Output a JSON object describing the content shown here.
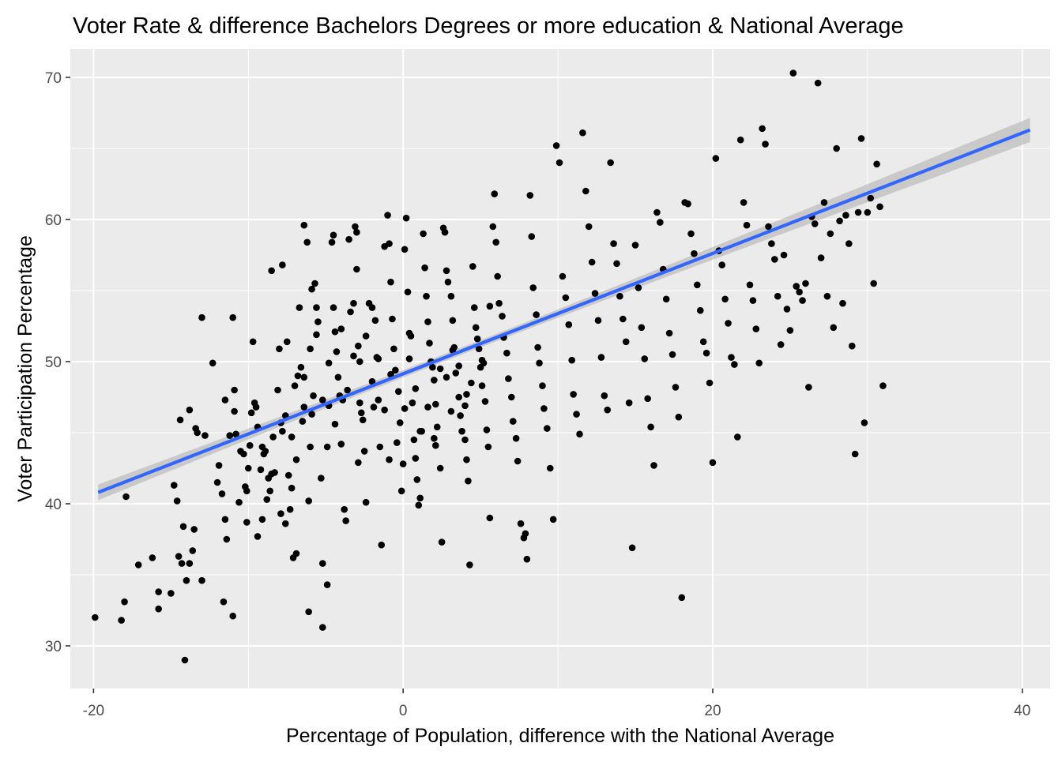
{
  "chart_data": {
    "type": "scatter",
    "title": "Voter Rate & difference Bachelors Degrees or more education & National Average",
    "xlabel": "Percentage of Population, difference with the National Average",
    "ylabel": "Voter Participation Percentage",
    "xlim": [
      -21.5,
      41.8
    ],
    "ylim": [
      27,
      72
    ],
    "x_ticks": [
      -20,
      0,
      20,
      40
    ],
    "x_tick_labels": [
      "-20",
      "0",
      "20",
      "40"
    ],
    "y_ticks": [
      30,
      40,
      50,
      60,
      70
    ],
    "y_tick_labels": [
      "30",
      "40",
      "50",
      "60",
      "70"
    ],
    "grid": true,
    "panel_color": "#ebebeb",
    "grid_color": "#ffffff",
    "point_color": "#000000",
    "trend_color": "#3366ff",
    "ribbon_color": "#b3b3b3",
    "trend": {
      "x": [
        -19.7,
        40.5
      ],
      "y": [
        40.8,
        66.3
      ],
      "ci_half_width_ends": 0.85,
      "ci_half_width_center": 0.25,
      "ci_center_x": 3.0
    },
    "points": [
      [
        -19.9,
        32.0
      ],
      [
        -18.2,
        31.8
      ],
      [
        -18.0,
        33.1
      ],
      [
        -17.9,
        40.5
      ],
      [
        -17.1,
        35.7
      ],
      [
        -16.2,
        36.2
      ],
      [
        -15.8,
        33.8
      ],
      [
        -15.8,
        32.6
      ],
      [
        -15.0,
        33.7
      ],
      [
        -14.8,
        41.3
      ],
      [
        -14.6,
        40.2
      ],
      [
        -14.5,
        36.3
      ],
      [
        -14.4,
        45.9
      ],
      [
        -14.3,
        35.8
      ],
      [
        -14.2,
        38.4
      ],
      [
        -14.0,
        34.6
      ],
      [
        -13.8,
        46.6
      ],
      [
        -13.8,
        35.8
      ],
      [
        -13.6,
        36.7
      ],
      [
        -13.5,
        38.2
      ],
      [
        -13.4,
        45.3
      ],
      [
        -14.1,
        29.0
      ],
      [
        -13.3,
        45.0
      ],
      [
        -13.0,
        34.6
      ],
      [
        -12.8,
        44.8
      ],
      [
        -12.3,
        49.9
      ],
      [
        -11.9,
        42.7
      ],
      [
        -11.7,
        40.7
      ],
      [
        -11.6,
        33.1
      ],
      [
        -11.5,
        38.9
      ],
      [
        -11.4,
        37.5
      ],
      [
        -11.2,
        44.8
      ],
      [
        -11.0,
        32.1
      ],
      [
        -11.0,
        53.1
      ],
      [
        -10.9,
        48.0
      ],
      [
        -10.9,
        46.5
      ],
      [
        -10.6,
        40.1
      ],
      [
        -10.5,
        43.7
      ],
      [
        -10.3,
        43.5
      ],
      [
        -10.1,
        40.9
      ],
      [
        -10.1,
        38.7
      ],
      [
        -10.0,
        42.5
      ],
      [
        -9.9,
        44.1
      ],
      [
        -9.8,
        46.4
      ],
      [
        -9.7,
        51.4
      ],
      [
        -9.5,
        46.8
      ],
      [
        -9.4,
        45.4
      ],
      [
        -9.2,
        42.4
      ],
      [
        -9.1,
        38.9
      ],
      [
        -9.0,
        43.5
      ],
      [
        -8.8,
        40.3
      ],
      [
        -8.7,
        41.8
      ],
      [
        -8.6,
        40.9
      ],
      [
        -8.5,
        56.4
      ],
      [
        -8.4,
        44.7
      ],
      [
        -8.3,
        42.2
      ],
      [
        -8.1,
        48.0
      ],
      [
        -7.9,
        39.3
      ],
      [
        -7.8,
        56.8
      ],
      [
        -7.8,
        45.1
      ],
      [
        -7.6,
        38.6
      ],
      [
        -7.5,
        51.4
      ],
      [
        -7.4,
        42.0
      ],
      [
        -7.3,
        39.6
      ],
      [
        -7.2,
        44.7
      ],
      [
        -7.1,
        36.2
      ],
      [
        -7.0,
        48.3
      ],
      [
        -6.9,
        36.5
      ],
      [
        -6.7,
        53.8
      ],
      [
        -6.6,
        49.6
      ],
      [
        -6.5,
        45.8
      ],
      [
        -6.4,
        59.6
      ],
      [
        -6.4,
        48.9
      ],
      [
        -6.2,
        58.4
      ],
      [
        -6.1,
        40.2
      ],
      [
        -6.1,
        32.4
      ],
      [
        -6.0,
        50.9
      ],
      [
        -5.9,
        55.1
      ],
      [
        -5.8,
        47.6
      ],
      [
        -5.7,
        55.5
      ],
      [
        -5.6,
        53.8
      ],
      [
        -5.5,
        52.8
      ],
      [
        -5.3,
        41.8
      ],
      [
        -5.2,
        35.8
      ],
      [
        -5.2,
        31.3
      ],
      [
        -4.9,
        34.3
      ],
      [
        -4.8,
        46.9
      ],
      [
        -4.6,
        58.4
      ],
      [
        -4.5,
        58.9
      ],
      [
        -4.5,
        53.8
      ],
      [
        -4.4,
        52.1
      ],
      [
        -4.3,
        50.7
      ],
      [
        -4.2,
        48.9
      ],
      [
        -4.1,
        47.6
      ],
      [
        -4.0,
        44.2
      ],
      [
        -3.8,
        39.6
      ],
      [
        -3.7,
        38.8
      ],
      [
        -3.5,
        58.6
      ],
      [
        -3.4,
        53.5
      ],
      [
        -3.2,
        54.1
      ],
      [
        -3.1,
        59.5
      ],
      [
        -3.0,
        59.1
      ],
      [
        -3.0,
        56.5
      ],
      [
        -2.9,
        51.1
      ],
      [
        -2.8,
        50.0
      ],
      [
        -2.7,
        46.4
      ],
      [
        -2.6,
        45.9
      ],
      [
        -2.5,
        43.7
      ],
      [
        -2.4,
        40.1
      ],
      [
        -2.2,
        54.1
      ],
      [
        -2.0,
        53.8
      ],
      [
        -1.8,
        52.9
      ],
      [
        -1.7,
        50.3
      ],
      [
        -1.6,
        47.3
      ],
      [
        -1.5,
        44.0
      ],
      [
        -1.4,
        37.1
      ],
      [
        -1.2,
        58.1
      ],
      [
        -1.0,
        60.3
      ],
      [
        -0.9,
        58.3
      ],
      [
        -0.8,
        55.6
      ],
      [
        -0.7,
        53.0
      ],
      [
        -0.6,
        50.9
      ],
      [
        -0.5,
        49.4
      ],
      [
        -0.3,
        47.9
      ],
      [
        -0.2,
        45.7
      ],
      [
        -0.1,
        40.9
      ],
      [
        0.0,
        42.8
      ],
      [
        0.1,
        57.9
      ],
      [
        0.2,
        60.1
      ],
      [
        0.3,
        54.9
      ],
      [
        0.4,
        52.0
      ],
      [
        0.5,
        51.8
      ],
      [
        0.6,
        47.1
      ],
      [
        0.7,
        44.5
      ],
      [
        0.8,
        43.2
      ],
      [
        0.9,
        41.7
      ],
      [
        1.0,
        39.9
      ],
      [
        1.1,
        40.4
      ],
      [
        1.3,
        59.0
      ],
      [
        1.4,
        56.6
      ],
      [
        1.5,
        54.6
      ],
      [
        1.6,
        52.8
      ],
      [
        1.7,
        51.3
      ],
      [
        1.8,
        50.0
      ],
      [
        1.9,
        49.6
      ],
      [
        2.0,
        48.7
      ],
      [
        2.1,
        47.0
      ],
      [
        2.2,
        45.4
      ],
      [
        2.4,
        42.5
      ],
      [
        2.5,
        37.3
      ],
      [
        2.6,
        59.4
      ],
      [
        2.7,
        59.1
      ],
      [
        2.8,
        56.4
      ],
      [
        2.9,
        55.6
      ],
      [
        3.1,
        54.6
      ],
      [
        3.2,
        52.9
      ],
      [
        3.3,
        51.0
      ],
      [
        3.4,
        49.2
      ],
      [
        3.6,
        47.5
      ],
      [
        3.7,
        46.2
      ],
      [
        3.8,
        45.1
      ],
      [
        4.0,
        44.5
      ],
      [
        4.1,
        43.1
      ],
      [
        4.2,
        41.6
      ],
      [
        4.3,
        35.7
      ],
      [
        4.5,
        56.7
      ],
      [
        4.6,
        53.8
      ],
      [
        4.7,
        52.4
      ],
      [
        4.9,
        50.9
      ],
      [
        5.0,
        49.6
      ],
      [
        5.1,
        48.3
      ],
      [
        5.3,
        47.2
      ],
      [
        5.4,
        45.2
      ],
      [
        5.5,
        44.0
      ],
      [
        5.6,
        39.0
      ],
      [
        5.8,
        59.5
      ],
      [
        5.9,
        61.8
      ],
      [
        6.0,
        58.4
      ],
      [
        6.1,
        56.0
      ],
      [
        6.2,
        54.1
      ],
      [
        6.4,
        53.2
      ],
      [
        6.5,
        51.7
      ],
      [
        6.7,
        50.6
      ],
      [
        6.8,
        48.8
      ],
      [
        7.0,
        47.5
      ],
      [
        7.1,
        45.8
      ],
      [
        7.3,
        44.6
      ],
      [
        7.4,
        43.0
      ],
      [
        7.6,
        38.6
      ],
      [
        7.8,
        37.6
      ],
      [
        7.9,
        37.9
      ],
      [
        8.0,
        36.1
      ],
      [
        8.2,
        61.7
      ],
      [
        8.3,
        58.8
      ],
      [
        8.4,
        55.2
      ],
      [
        8.6,
        53.3
      ],
      [
        8.7,
        51.0
      ],
      [
        8.8,
        49.9
      ],
      [
        9.0,
        48.3
      ],
      [
        9.1,
        46.7
      ],
      [
        9.3,
        45.3
      ],
      [
        9.5,
        42.5
      ],
      [
        9.7,
        38.9
      ],
      [
        9.9,
        65.2
      ],
      [
        10.1,
        64.0
      ],
      [
        10.3,
        56.0
      ],
      [
        10.5,
        54.5
      ],
      [
        10.7,
        52.6
      ],
      [
        10.9,
        50.1
      ],
      [
        11.0,
        47.7
      ],
      [
        11.2,
        46.3
      ],
      [
        11.4,
        44.9
      ],
      [
        11.6,
        66.1
      ],
      [
        11.8,
        62.0
      ],
      [
        12.0,
        59.5
      ],
      [
        12.2,
        57.0
      ],
      [
        12.4,
        54.8
      ],
      [
        12.6,
        52.9
      ],
      [
        12.8,
        50.3
      ],
      [
        13.0,
        47.6
      ],
      [
        13.2,
        46.6
      ],
      [
        13.4,
        64.0
      ],
      [
        13.6,
        58.3
      ],
      [
        13.8,
        56.9
      ],
      [
        14.0,
        54.6
      ],
      [
        14.2,
        53.0
      ],
      [
        14.4,
        51.4
      ],
      [
        14.6,
        47.1
      ],
      [
        14.8,
        36.9
      ],
      [
        15.0,
        58.2
      ],
      [
        15.2,
        55.2
      ],
      [
        15.4,
        52.4
      ],
      [
        15.6,
        50.2
      ],
      [
        15.8,
        47.4
      ],
      [
        16.0,
        45.4
      ],
      [
        16.2,
        42.7
      ],
      [
        16.4,
        60.5
      ],
      [
        16.6,
        59.8
      ],
      [
        16.8,
        56.5
      ],
      [
        17.0,
        54.4
      ],
      [
        17.2,
        52.0
      ],
      [
        17.4,
        50.5
      ],
      [
        17.6,
        48.2
      ],
      [
        17.8,
        46.1
      ],
      [
        18.0,
        33.4
      ],
      [
        18.2,
        61.2
      ],
      [
        18.4,
        61.1
      ],
      [
        18.6,
        59.0
      ],
      [
        18.8,
        57.6
      ],
      [
        19.0,
        55.4
      ],
      [
        19.2,
        53.6
      ],
      [
        19.4,
        51.4
      ],
      [
        19.6,
        50.6
      ],
      [
        19.8,
        48.5
      ],
      [
        20.0,
        42.9
      ],
      [
        20.2,
        64.3
      ],
      [
        20.4,
        57.8
      ],
      [
        20.6,
        56.8
      ],
      [
        20.8,
        54.4
      ],
      [
        21.0,
        52.7
      ],
      [
        21.2,
        50.3
      ],
      [
        21.4,
        49.8
      ],
      [
        21.6,
        44.7
      ],
      [
        21.8,
        65.6
      ],
      [
        22.0,
        61.2
      ],
      [
        22.2,
        59.6
      ],
      [
        22.4,
        55.4
      ],
      [
        22.6,
        54.3
      ],
      [
        22.8,
        52.3
      ],
      [
        23.0,
        49.9
      ],
      [
        23.2,
        66.4
      ],
      [
        23.4,
        65.3
      ],
      [
        23.6,
        59.5
      ],
      [
        23.8,
        58.3
      ],
      [
        24.0,
        57.2
      ],
      [
        24.2,
        54.6
      ],
      [
        24.4,
        51.2
      ],
      [
        24.6,
        57.5
      ],
      [
        24.8,
        53.7
      ],
      [
        25.0,
        52.2
      ],
      [
        25.2,
        70.3
      ],
      [
        25.4,
        55.3
      ],
      [
        25.6,
        54.9
      ],
      [
        25.8,
        54.3
      ],
      [
        26.0,
        55.5
      ],
      [
        26.2,
        48.2
      ],
      [
        26.4,
        60.2
      ],
      [
        26.6,
        59.7
      ],
      [
        26.8,
        69.6
      ],
      [
        27.0,
        57.3
      ],
      [
        27.2,
        61.2
      ],
      [
        27.4,
        54.6
      ],
      [
        27.6,
        59.0
      ],
      [
        27.8,
        52.4
      ],
      [
        28.0,
        65.0
      ],
      [
        28.2,
        59.9
      ],
      [
        28.4,
        54.1
      ],
      [
        28.6,
        60.3
      ],
      [
        28.8,
        58.3
      ],
      [
        29.0,
        51.1
      ],
      [
        29.2,
        43.5
      ],
      [
        29.4,
        60.5
      ],
      [
        29.6,
        65.7
      ],
      [
        29.8,
        45.7
      ],
      [
        30.0,
        60.5
      ],
      [
        30.2,
        61.5
      ],
      [
        30.4,
        55.5
      ],
      [
        30.6,
        63.9
      ],
      [
        30.8,
        60.9
      ],
      [
        31.0,
        48.3
      ],
      [
        -13.0,
        53.1
      ],
      [
        -12.0,
        41.5
      ],
      [
        -11.5,
        47.3
      ],
      [
        -10.8,
        44.9
      ],
      [
        -10.2,
        41.2
      ],
      [
        -9.6,
        47.1
      ],
      [
        -9.1,
        44.0
      ],
      [
        -8.5,
        42.1
      ],
      [
        -8.0,
        50.9
      ],
      [
        -7.6,
        46.2
      ],
      [
        -7.2,
        41.1
      ],
      [
        -6.8,
        49.0
      ],
      [
        -6.4,
        46.8
      ],
      [
        -6.0,
        44.0
      ],
      [
        -5.6,
        51.9
      ],
      [
        -5.2,
        47.3
      ],
      [
        -4.8,
        49.9
      ],
      [
        -4.4,
        45.6
      ],
      [
        -4.0,
        52.3
      ],
      [
        -3.6,
        48.0
      ],
      [
        -3.2,
        50.4
      ],
      [
        -2.8,
        47.1
      ],
      [
        -2.4,
        51.8
      ],
      [
        -2.0,
        48.6
      ],
      [
        -1.6,
        50.2
      ],
      [
        -1.2,
        46.6
      ],
      [
        -0.8,
        49.1
      ],
      [
        -0.4,
        44.3
      ],
      [
        0.4,
        50.2
      ],
      [
        0.8,
        48.1
      ],
      [
        1.2,
        45.1
      ],
      [
        1.6,
        46.8
      ],
      [
        2.0,
        44.6
      ],
      [
        2.4,
        49.5
      ],
      [
        2.8,
        48.9
      ],
      [
        3.2,
        50.8
      ],
      [
        3.6,
        49.7
      ],
      [
        4.0,
        46.9
      ],
      [
        4.4,
        48.5
      ],
      [
        4.8,
        51.6
      ],
      [
        5.2,
        49.9
      ],
      [
        5.6,
        53.9
      ],
      [
        -9.4,
        37.7
      ],
      [
        -8.9,
        43.7
      ],
      [
        -7.9,
        45.7
      ],
      [
        -6.9,
        43.1
      ],
      [
        -5.9,
        46.3
      ],
      [
        -4.9,
        44.0
      ],
      [
        -3.9,
        47.3
      ],
      [
        -2.9,
        42.9
      ],
      [
        -1.9,
        46.8
      ],
      [
        -0.9,
        43.1
      ],
      [
        0.1,
        46.7
      ],
      [
        1.1,
        45.1
      ],
      [
        2.1,
        44.1
      ],
      [
        3.1,
        46.5
      ],
      [
        4.1,
        47.7
      ],
      [
        5.1,
        50.1
      ]
    ]
  }
}
